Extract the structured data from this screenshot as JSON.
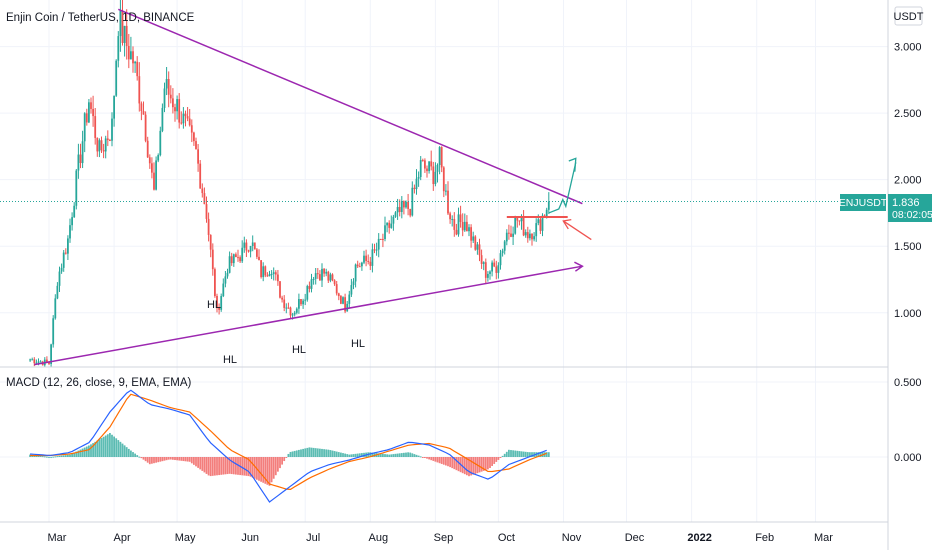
{
  "header": {
    "title": "Enjin Coin / TetherUS, 1D, BINANCE",
    "currency_button": "USDT"
  },
  "price_tag": {
    "symbol": "ENJUSDT",
    "price": "1.836",
    "countdown": "08:02:05"
  },
  "macd": {
    "title": "MACD (12, 26, close, 9, EMA, EMA)"
  },
  "colors": {
    "up": "#26a69a",
    "down": "#ef5350",
    "trendline": "#9c27b0",
    "arrow_up": "#26a69a",
    "arrow_down": "#ef5350",
    "macd_line": "#2962ff",
    "signal_line": "#ff6d00",
    "last_price": "#26a69a"
  },
  "annotations": [
    "HL",
    "HL",
    "HL",
    "HL"
  ],
  "chart_data": [
    {
      "type": "candlestick",
      "title": "Enjin Coin / TetherUS, 1D, BINANCE",
      "x_ticks": [
        "Mar",
        "Apr",
        "May",
        "Jun",
        "Jul",
        "Aug",
        "Sep",
        "Oct",
        "Nov",
        "Dec",
        "2022",
        "Feb",
        "Mar"
      ],
      "y_ticks": [
        "1.000",
        "1.500",
        "2.000",
        "2.500",
        "3.000"
      ],
      "ylim": [
        0.6,
        3.35
      ],
      "last_price": 1.836,
      "trendlines": [
        {
          "from": [
            "Apr 3",
            3.28
          ],
          "to": [
            "Nov 10",
            1.82
          ]
        },
        {
          "from": [
            "Feb 22",
            0.61
          ],
          "to": [
            "Nov 10",
            1.35
          ]
        }
      ],
      "horizontal_level": 1.72,
      "swing_labels": [
        {
          "text": "HL",
          "date": "May 20",
          "price": 0.82
        },
        {
          "text": "HL",
          "date": "May 23",
          "price": 0.78
        },
        {
          "text": "HL",
          "date": "Jun 22",
          "price": 0.86
        },
        {
          "text": "HL",
          "date": "Jul 20",
          "price": 0.9
        }
      ],
      "closes": {
        "Feb 20": 0.65,
        "Mar 1": 0.62,
        "Mar 5": 1.25,
        "Mar 10": 1.55,
        "Mar 15": 2.1,
        "Mar 20": 2.6,
        "Mar 25": 2.2,
        "Mar 31": 2.4,
        "Apr 3": 3.2,
        "Apr 6": 3.05,
        "Apr 10": 2.9,
        "Apr 15": 2.5,
        "Apr 20": 1.9,
        "Apr 25": 2.7,
        "May 1": 2.55,
        "May 5": 2.4,
        "May 10": 2.2,
        "May 15": 1.75,
        "May 20": 1.0,
        "May 25": 1.35,
        "Jun 1": 1.45,
        "Jun 5": 1.55,
        "Jun 10": 1.3,
        "Jun 15": 1.35,
        "Jun 20": 1.1,
        "Jun 25": 1.0,
        "Jul 1": 1.15,
        "Jul 5": 1.3,
        "Jul 10": 1.3,
        "Jul 15": 1.2,
        "Jul 20": 1.05,
        "Jul 25": 1.35,
        "Aug 1": 1.4,
        "Aug 5": 1.5,
        "Aug 10": 1.65,
        "Aug 15": 1.75,
        "Aug 20": 1.8,
        "Aug 25": 2.1,
        "Aug 31": 2.05,
        "Sep 3": 2.15,
        "Sep 7": 1.8,
        "Sep 10": 1.65,
        "Sep 15": 1.7,
        "Sep 20": 1.5,
        "Sep 25": 1.3,
        "Sep 30": 1.35,
        "Oct 5": 1.6,
        "Oct 10": 1.7,
        "Oct 15": 1.6,
        "Oct 20": 1.65,
        "Oct 25": 1.836
      }
    },
    {
      "type": "line",
      "title": "MACD (12, 26, close, 9, EMA, EMA)",
      "y_ticks": [
        "0.000",
        "0.500"
      ],
      "ylim": [
        -0.42,
        0.58
      ],
      "series": [
        {
          "name": "MACD",
          "values": [
            0.02,
            0.01,
            0.03,
            0.1,
            0.3,
            0.45,
            0.35,
            0.32,
            0.28,
            0.1,
            -0.02,
            -0.1,
            -0.3,
            -0.2,
            -0.1,
            -0.05,
            -0.02,
            0.02,
            0.05,
            0.1,
            0.08,
            0.02,
            -0.1,
            -0.15,
            -0.05,
            0.0,
            0.05
          ]
        },
        {
          "name": "Signal",
          "values": [
            0.01,
            0.01,
            0.02,
            0.05,
            0.2,
            0.42,
            0.38,
            0.33,
            0.3,
            0.18,
            0.05,
            -0.02,
            -0.18,
            -0.22,
            -0.14,
            -0.08,
            -0.03,
            0.0,
            0.04,
            0.08,
            0.09,
            0.06,
            -0.02,
            -0.1,
            -0.08,
            -0.02,
            0.03
          ]
        }
      ]
    }
  ]
}
